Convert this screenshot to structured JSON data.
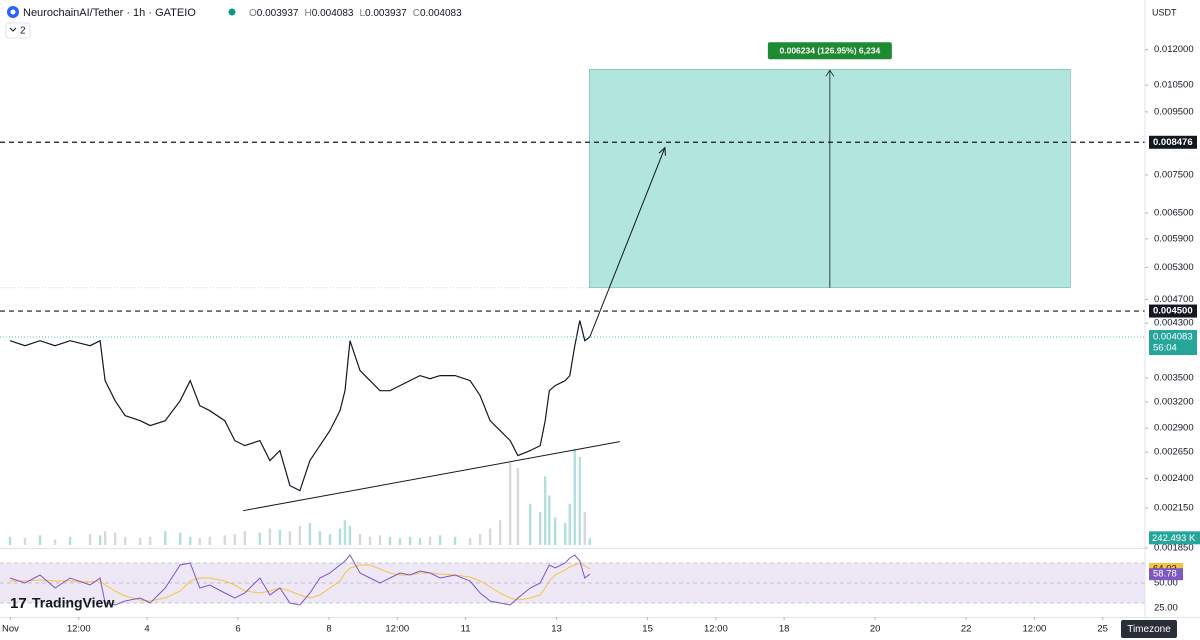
{
  "chart_data": {
    "type": "line",
    "title": "NeurochainAI/Tether · 1h · GATEIO",
    "ohlc": [
      {
        "label": "O",
        "value": 0.003937
      },
      {
        "label": "H",
        "value": 0.004083
      },
      {
        "label": "L",
        "value": 0.003937
      },
      {
        "label": "C",
        "value": 0.004083
      }
    ],
    "indicator_count": 2,
    "currency": "USDT",
    "log_scale": true,
    "color": "#131722",
    "x": [
      0.99,
      1.32,
      1.65,
      1.98,
      2.31,
      2.75,
      2.97,
      3.08,
      3.3,
      3.52,
      3.85,
      4.07,
      4.4,
      4.73,
      4.95,
      5.16,
      5.38,
      5.71,
      5.93,
      6.15,
      6.48,
      6.7,
      6.92,
      7.14,
      7.36,
      7.58,
      7.8,
      8.02,
      8.24,
      8.35,
      8.46,
      8.68,
      8.9,
      9.12,
      9.34,
      9.56,
      9.78,
      10.0,
      10.22,
      10.44,
      10.77,
      11.1,
      11.32,
      11.54,
      11.76,
      11.98,
      12.15,
      12.42,
      12.64,
      12.75,
      12.84,
      12.97,
      13.19,
      13.29,
      13.4,
      13.51,
      13.62,
      13.73
    ],
    "values": [
      0.004027,
      0.003952,
      0.004027,
      0.003952,
      0.004027,
      0.003952,
      0.004027,
      0.003466,
      0.003215,
      0.00304,
      0.002983,
      0.002928,
      0.002983,
      0.003215,
      0.003466,
      0.003156,
      0.003097,
      0.002983,
      0.002768,
      0.002716,
      0.002768,
      0.002568,
      0.002666,
      0.002338,
      0.002294,
      0.002568,
      0.002716,
      0.002874,
      0.003097,
      0.003338,
      0.004027,
      0.003599,
      0.003466,
      0.003338,
      0.003338,
      0.003402,
      0.003466,
      0.003532,
      0.003492,
      0.003532,
      0.003532,
      0.003466,
      0.003277,
      0.002983,
      0.002874,
      0.002768,
      0.002616,
      0.002666,
      0.002716,
      0.002983,
      0.003338,
      0.003402,
      0.003466,
      0.003532,
      0.003952,
      0.004343,
      0.004027,
      0.004083
    ],
    "countdown": "56:04",
    "xlim": [
      0.77,
      25.93
    ],
    "xticks": [
      {
        "value": 1,
        "label": "Nov"
      },
      {
        "value": 2.5,
        "label": "12:00"
      },
      4,
      6,
      8,
      {
        "value": 9.5,
        "label": "12:00"
      },
      11,
      13,
      15,
      {
        "value": 16.5,
        "label": "12:00"
      },
      18,
      20,
      22,
      {
        "value": 23.5,
        "label": "12:00"
      },
      25
    ],
    "ylim": [
      0.00185,
      0.0144
    ],
    "yticks": [
      {
        "value": 0.012,
        "label": "0.012000"
      },
      {
        "value": 0.0105,
        "label": "0.010500"
      },
      {
        "value": 0.0095,
        "label": "0.009500"
      },
      {
        "value": 0.0075,
        "label": "0.007500"
      },
      {
        "value": 0.0065,
        "label": "0.006500"
      },
      {
        "value": 0.0059,
        "label": "0.005900"
      },
      {
        "value": 0.0053,
        "label": "0.005300"
      },
      {
        "value": 0.0047,
        "label": "0.004700"
      },
      {
        "value": 0.0043,
        "label": "0.004300"
      },
      {
        "value": 0.0035,
        "label": "0.003500"
      },
      {
        "value": 0.0032,
        "label": "0.003200"
      },
      {
        "value": 0.0029,
        "label": "0.002900"
      },
      {
        "value": 0.00265,
        "label": "0.002650"
      },
      {
        "value": 0.0024,
        "label": "0.002400"
      },
      {
        "value": 0.00215,
        "label": "0.002150"
      },
      {
        "value": 0.00185,
        "label": "0.001850"
      }
    ],
    "horizontal_lines": [
      {
        "value": 0.008476,
        "label": "0.008476"
      },
      {
        "value": 0.0045,
        "label": "0.004500"
      }
    ],
    "position": {
      "x": [
        13.72,
        24.29
      ],
      "entry": 0.004911,
      "target": 0.011145,
      "label": "0.006234 (126.95%) 6,234",
      "color": "#b2e5dd"
    },
    "arrow": {
      "x": [
        13.73,
        15.38
      ],
      "values": [
        0.004083,
        0.008306
      ]
    },
    "trend_line": {
      "x": [
        6.11,
        14.39
      ],
      "values": [
        0.002128,
        0.002757
      ]
    },
    "volume": {
      "values": [
        300,
        250,
        350,
        200,
        300,
        400,
        350,
        500,
        450,
        300,
        250,
        300,
        500,
        450,
        300,
        250,
        300,
        350,
        400,
        500,
        450,
        600,
        550,
        500,
        700,
        800,
        500,
        400,
        600,
        900,
        700,
        400,
        300,
        350,
        300,
        250,
        300,
        250,
        300,
        350,
        300,
        250,
        400,
        600,
        900,
        3000,
        2800,
        1500,
        1200,
        2500,
        1800,
        1000,
        800,
        1500,
        3500,
        3200,
        1200,
        242.493
      ],
      "ylim": [
        0,
        4000
      ],
      "last_value_label": "242.493 K",
      "up_color": "#b2dfdb",
      "down_color": "#d8d8d8"
    },
    "rsi": {
      "values": [
        55,
        50,
        58,
        45,
        55,
        48,
        55,
        30,
        28,
        32,
        35,
        30,
        45,
        68,
        70,
        45,
        48,
        40,
        35,
        40,
        55,
        38,
        45,
        30,
        28,
        40,
        55,
        60,
        68,
        72,
        78,
        60,
        55,
        50,
        55,
        60,
        58,
        62,
        60,
        55,
        58,
        52,
        40,
        32,
        30,
        28,
        35,
        45,
        50,
        60,
        68,
        65,
        70,
        75,
        78,
        72,
        55,
        58.78
      ],
      "ma_values": [
        52,
        52,
        53,
        52,
        52,
        51,
        52,
        48,
        42,
        37,
        33,
        32,
        35,
        42,
        52,
        55,
        55,
        52,
        48,
        42,
        40,
        42,
        45,
        42,
        38,
        35,
        38,
        45,
        52,
        60,
        65,
        68,
        68,
        64,
        60,
        58,
        58,
        60,
        60,
        59,
        58,
        56,
        52,
        46,
        40,
        35,
        33,
        35,
        38,
        45,
        52,
        58,
        63,
        66,
        68,
        70,
        67,
        64.03
      ],
      "ylim": [
        18,
        83
      ],
      "band": [
        30,
        70
      ],
      "levels": [
        70,
        50,
        30
      ],
      "yticks": [
        {
          "value": 50,
          "label": "50.00"
        },
        {
          "value": 25,
          "label": "25.00"
        }
      ],
      "color": "#7e57c2",
      "ma_color": "#f5c542"
    },
    "logo": "TradingView",
    "timezone_button": "Timezone"
  }
}
